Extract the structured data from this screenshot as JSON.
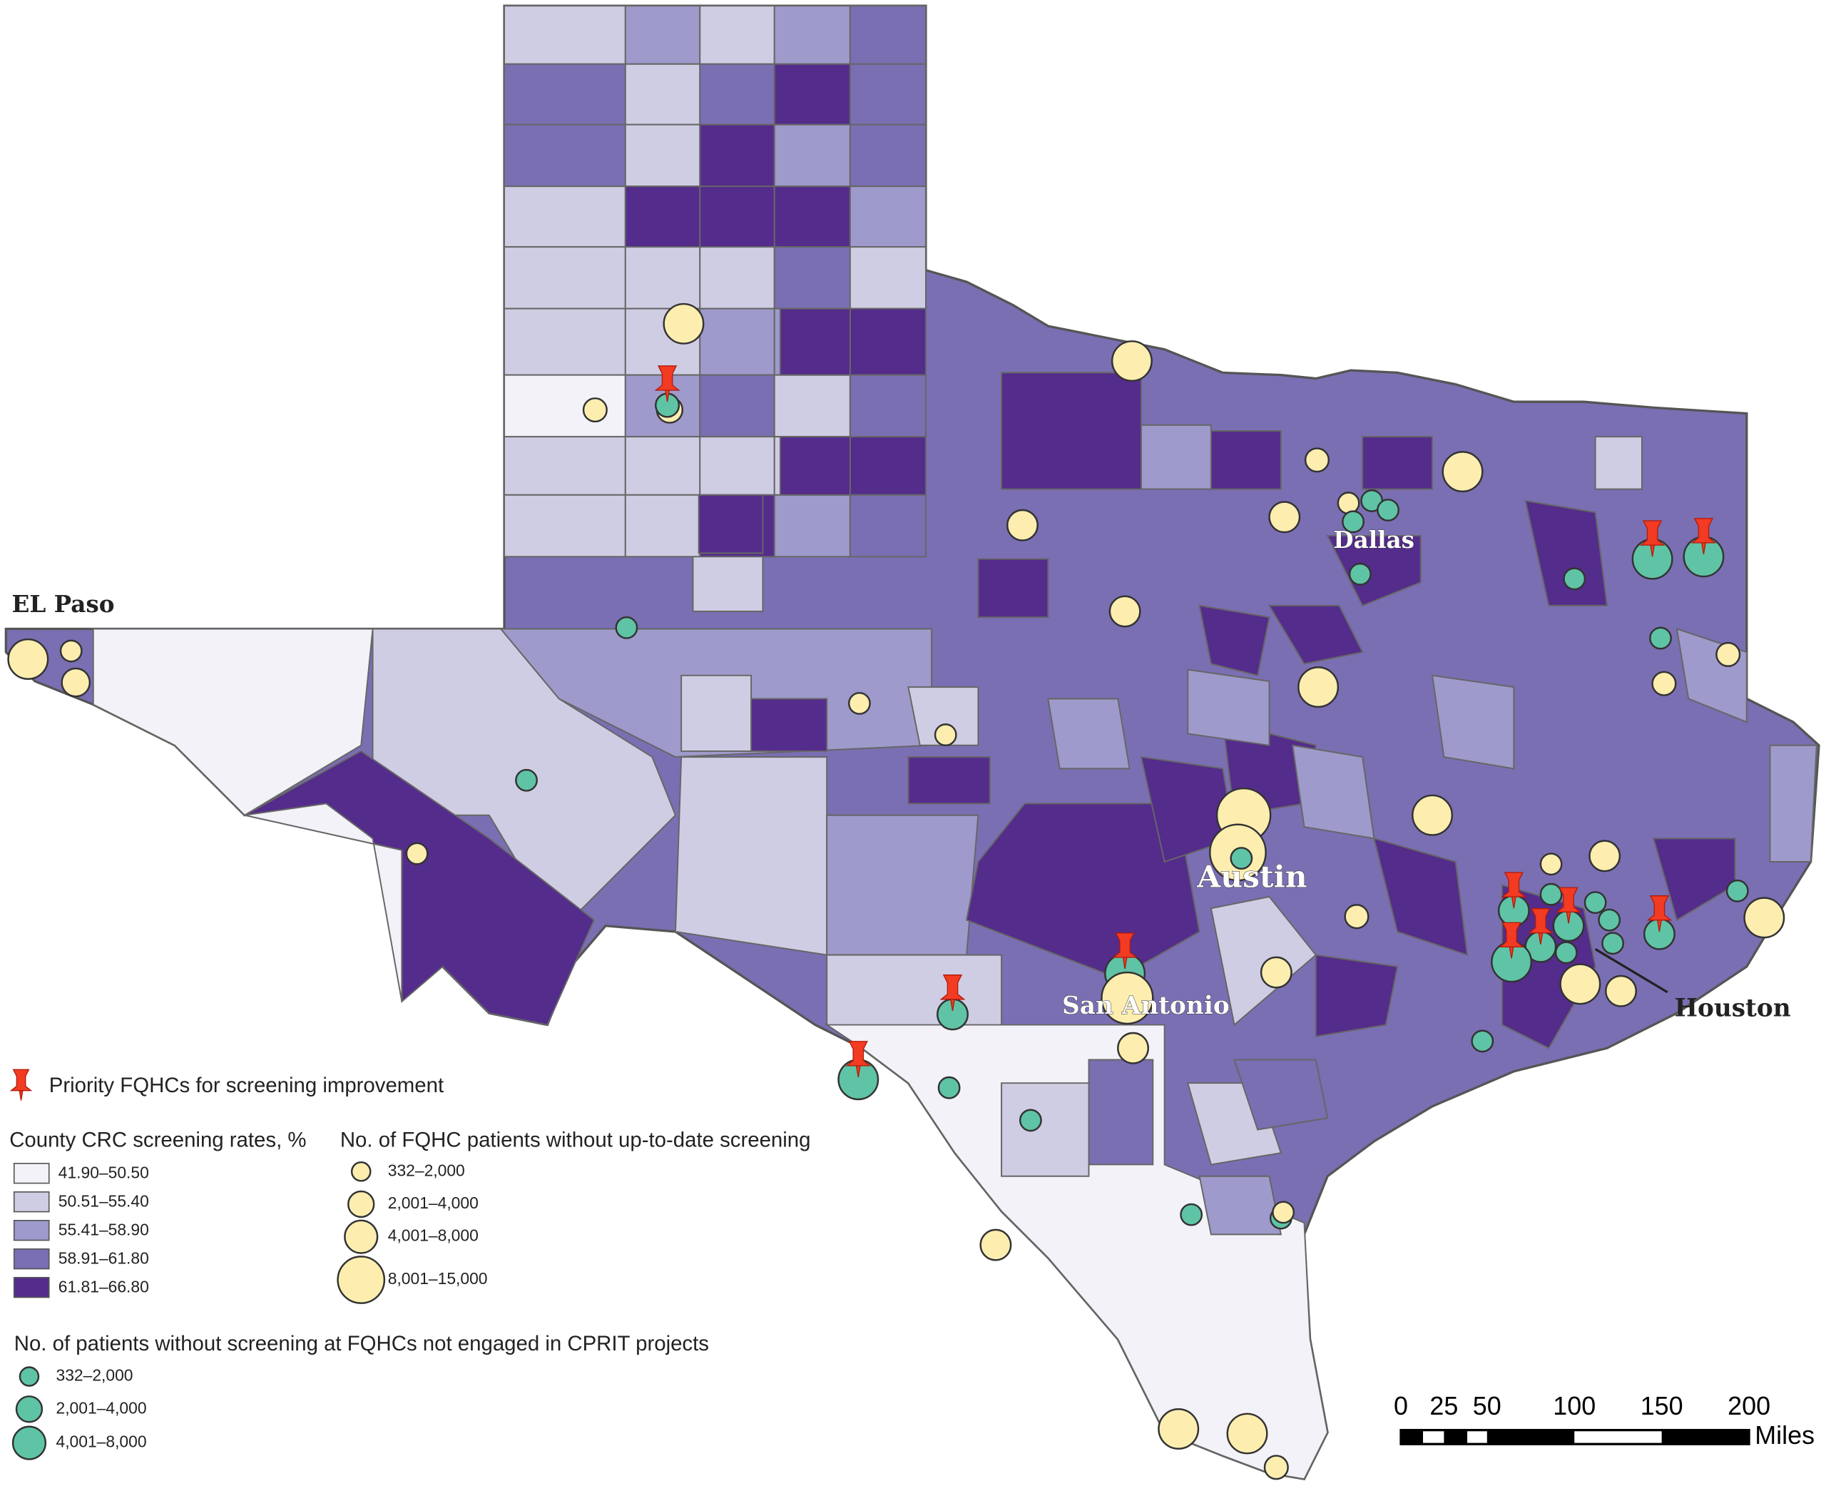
{
  "cities": [
    "EL Paso",
    "Dallas",
    "Austin",
    "San Antonio",
    "Houston"
  ],
  "legend": {
    "priority": "Priority FQHCs for screening improvement",
    "county": {
      "title": "County CRC screening rates, %",
      "items": [
        "41.90–50.50",
        "50.51–55.40",
        "55.41–58.90",
        "58.91–61.80",
        "61.81–66.80"
      ],
      "colors": [
        "#f3f2f8",
        "#cfcde3",
        "#9e9acb",
        "#7a6fb3",
        "#542c8b"
      ]
    },
    "patients": {
      "title": "No. of FQHC patients without up-to-date screening",
      "items": [
        "332–2,000",
        "2,001–4,000",
        "4,001–8,000",
        "8,001–15,000"
      ]
    },
    "nonengaged": {
      "title": "No. of patients without screening at FQHCs not engaged in CPRIT projects",
      "items": [
        "332–2,000",
        "2,001–4,000",
        "4,001–8,000"
      ]
    }
  },
  "scale": {
    "ticks": [
      "0",
      "25",
      "50",
      "100",
      "150",
      "200"
    ],
    "unit": "Miles"
  }
}
